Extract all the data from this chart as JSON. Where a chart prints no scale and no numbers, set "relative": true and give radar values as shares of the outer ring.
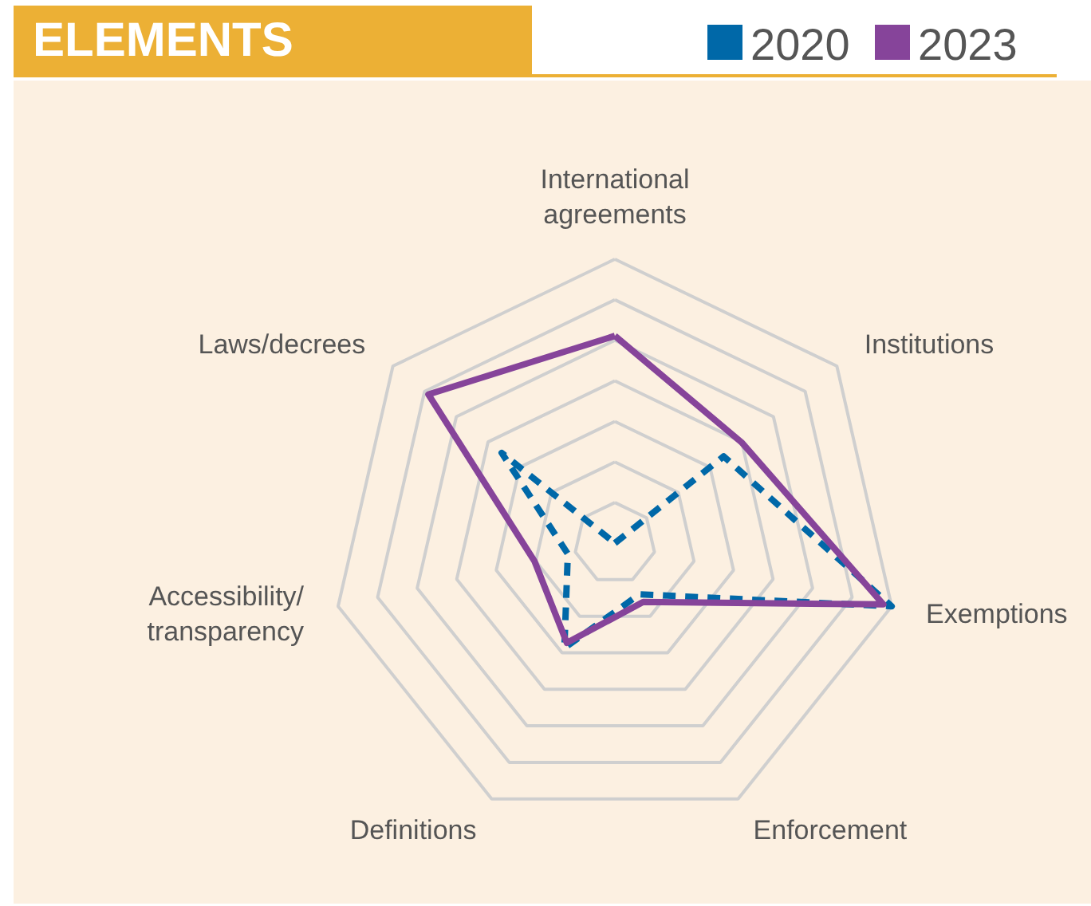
{
  "chart_data": {
    "type": "radar",
    "title": "ELEMENTS",
    "relative": true,
    "grid": true,
    "legend": "top right",
    "categories": [
      "International\nagreements",
      "Institutions",
      "Exemptions",
      "Enforcement",
      "Definitions",
      "Accessibility/\ntransparency",
      "Laws/decrees"
    ],
    "series": [
      {
        "name": "2020",
        "color": "#0068a8",
        "line_style": "dashed",
        "values": [
          0,
          0.49,
          1,
          0.2,
          0.41,
          0.17,
          0.51
        ]
      },
      {
        "name": "2023",
        "color": "#86449a",
        "line_style": "solid",
        "values": [
          0.73,
          0.57,
          0.97,
          0.23,
          0.39,
          0.29,
          0.84
        ]
      }
    ]
  }
}
